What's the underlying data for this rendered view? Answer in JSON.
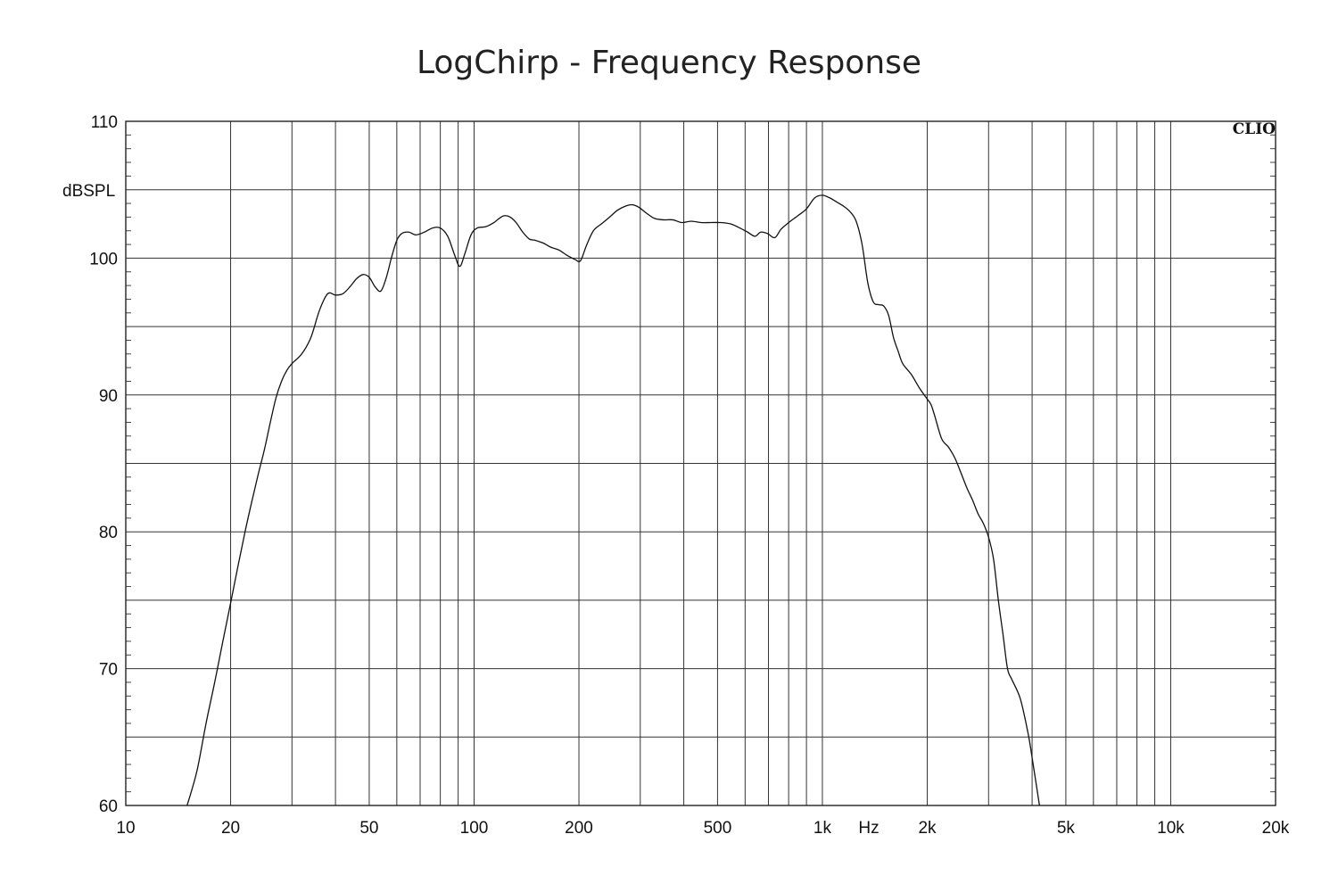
{
  "chart_data": {
    "type": "line",
    "title": "LogChirp - Frequency Response",
    "xlabel": "Hz",
    "ylabel": "dBSPL",
    "x_scale": "log",
    "xlim": [
      10,
      20000
    ],
    "ylim": [
      60,
      110
    ],
    "grid": true,
    "legend": "none",
    "brand_mark": "CLIO",
    "x_tick_labels": [
      {
        "value": 10,
        "label": "10"
      },
      {
        "value": 20,
        "label": "20"
      },
      {
        "value": 50,
        "label": "50"
      },
      {
        "value": 100,
        "label": "100"
      },
      {
        "value": 200,
        "label": "200"
      },
      {
        "value": 500,
        "label": "500"
      },
      {
        "value": 1000,
        "label": "1k"
      },
      {
        "value": 2000,
        "label": "2k"
      },
      {
        "value": 5000,
        "label": "5k"
      },
      {
        "value": 10000,
        "label": "10k"
      },
      {
        "value": 20000,
        "label": "20k"
      }
    ],
    "y_tick_labels": [
      {
        "value": 110,
        "label": "110"
      },
      {
        "value": 100,
        "label": "100"
      },
      {
        "value": 90,
        "label": "90"
      },
      {
        "value": 80,
        "label": "80"
      },
      {
        "value": 70,
        "label": "70"
      },
      {
        "value": 60,
        "label": "60"
      }
    ],
    "x_gridlines": [
      20,
      30,
      40,
      50,
      60,
      70,
      80,
      90,
      100,
      200,
      300,
      400,
      500,
      600,
      700,
      800,
      900,
      1000,
      2000,
      3000,
      4000,
      5000,
      6000,
      7000,
      8000,
      9000,
      10000,
      20000
    ],
    "y_gridlines": [
      60,
      65,
      70,
      75,
      80,
      85,
      90,
      95,
      100,
      105,
      110
    ],
    "series": [
      {
        "x": [
          15,
          16,
          17,
          18,
          19,
          20,
          21,
          22,
          23,
          24,
          25,
          26,
          27,
          28,
          29,
          30,
          32,
          34,
          36,
          38,
          40,
          42,
          44,
          46,
          48,
          50,
          52,
          54,
          56,
          58,
          60,
          62,
          65,
          68,
          72,
          76,
          80,
          84,
          88,
          91,
          94,
          98,
          102,
          108,
          114,
          118,
          122,
          127,
          132,
          138,
          144,
          150,
          158,
          166,
          175,
          185,
          195,
          202,
          210,
          220,
          232,
          245,
          258,
          272,
          285,
          298,
          312,
          330,
          350,
          372,
          395,
          420,
          448,
          478,
          510,
          545,
          580,
          610,
          640,
          665,
          695,
          730,
          760,
          800,
          850,
          900,
          950,
          1000,
          1050,
          1100,
          1150,
          1200,
          1250,
          1300,
          1350,
          1400,
          1450,
          1500,
          1550,
          1600,
          1650,
          1700,
          1800,
          1900,
          2000,
          2050,
          2100,
          2200,
          2300,
          2400,
          2500,
          2600,
          2700,
          2800,
          2900,
          3000,
          3100,
          3200,
          3300,
          3400,
          3500,
          3700,
          3900,
          4000,
          4200
        ],
        "y": [
          60,
          62.5,
          66,
          69,
          72,
          74.8,
          77.5,
          80,
          82.2,
          84.2,
          86,
          88,
          89.8,
          91,
          91.8,
          92.3,
          93,
          94.2,
          96.2,
          97.4,
          97.3,
          97.4,
          97.9,
          98.5,
          98.8,
          98.6,
          97.9,
          97.6,
          98.6,
          100.1,
          101.3,
          101.8,
          101.9,
          101.7,
          101.9,
          102.2,
          102.2,
          101.6,
          100.2,
          99.4,
          100.3,
          101.7,
          102.2,
          102.3,
          102.6,
          102.9,
          103.1,
          103.0,
          102.6,
          101.9,
          101.4,
          101.3,
          101.1,
          100.8,
          100.6,
          100.2,
          99.9,
          99.8,
          100.9,
          102.0,
          102.5,
          103.0,
          103.5,
          103.8,
          103.9,
          103.7,
          103.3,
          102.9,
          102.8,
          102.8,
          102.6,
          102.7,
          102.6,
          102.6,
          102.6,
          102.5,
          102.2,
          101.9,
          101.6,
          101.9,
          101.8,
          101.5,
          102.1,
          102.6,
          103.1,
          103.6,
          104.4,
          104.6,
          104.4,
          104.1,
          103.8,
          103.4,
          102.7,
          101.0,
          98.2,
          96.8,
          96.6,
          96.5,
          95.8,
          94.2,
          93.2,
          92.3,
          91.5,
          90.5,
          89.7,
          89.3,
          88.5,
          86.8,
          86.2,
          85.4,
          84.3,
          83.2,
          82.3,
          81.3,
          80.6,
          79.6,
          78.0,
          75.0,
          72.5,
          70.0,
          69.2,
          67.8,
          65.2,
          63.5,
          60.0
        ]
      }
    ]
  }
}
